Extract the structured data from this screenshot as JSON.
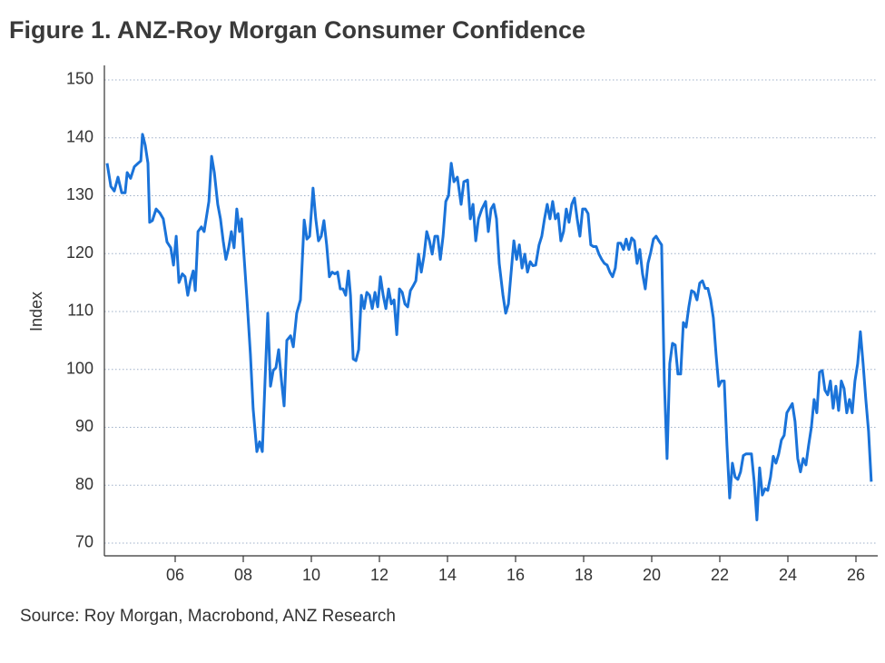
{
  "chart_data": {
    "type": "line",
    "title": "Figure 1.  ANZ-Roy Morgan Consumer Confidence",
    "y_label": "Index",
    "source": "Source: Roy Morgan, Macrobond, ANZ Research",
    "color": "#1a73d9",
    "grid": true,
    "xlim": [
      3.92,
      26.64
    ],
    "ylim": [
      67.8,
      152.5
    ],
    "yticks": [
      70,
      80,
      90,
      100,
      110,
      120,
      130,
      140,
      150
    ],
    "xticks": [
      {
        "value": 6,
        "label": "06"
      },
      {
        "value": 8,
        "label": "08"
      },
      {
        "value": 10,
        "label": "10"
      },
      {
        "value": 12,
        "label": "12"
      },
      {
        "value": 14,
        "label": "14"
      },
      {
        "value": 16,
        "label": "16"
      },
      {
        "value": 18,
        "label": "18"
      },
      {
        "value": 20,
        "label": "20"
      },
      {
        "value": 22,
        "label": "22"
      },
      {
        "value": 24,
        "label": "24"
      },
      {
        "value": 26,
        "label": "26"
      }
    ],
    "x": [
      4.0,
      4.11,
      4.21,
      4.32,
      4.43,
      4.53,
      4.59,
      4.69,
      4.8,
      4.91,
      4.99,
      5.04,
      5.12,
      5.2,
      5.25,
      5.33,
      5.44,
      5.55,
      5.65,
      5.76,
      5.87,
      5.95,
      6.03,
      6.11,
      6.21,
      6.29,
      6.37,
      6.45,
      6.53,
      6.59,
      6.67,
      6.77,
      6.85,
      6.99,
      7.07,
      7.15,
      7.25,
      7.33,
      7.41,
      7.49,
      7.57,
      7.65,
      7.73,
      7.81,
      7.89,
      7.95,
      8.0,
      8.11,
      8.21,
      8.29,
      8.4,
      8.48,
      8.56,
      8.64,
      8.72,
      8.8,
      8.88,
      8.96,
      9.04,
      9.12,
      9.2,
      9.28,
      9.39,
      9.47,
      9.57,
      9.68,
      9.79,
      9.87,
      9.95,
      10.05,
      10.13,
      10.21,
      10.29,
      10.37,
      10.45,
      10.53,
      10.61,
      10.69,
      10.77,
      10.85,
      10.93,
      11.01,
      11.09,
      11.15,
      11.23,
      11.31,
      11.39,
      11.47,
      11.55,
      11.63,
      11.71,
      11.79,
      11.87,
      11.95,
      12.03,
      12.11,
      12.19,
      12.27,
      12.35,
      12.43,
      12.51,
      12.59,
      12.67,
      12.75,
      12.83,
      12.91,
      12.99,
      13.07,
      13.15,
      13.23,
      13.31,
      13.39,
      13.47,
      13.55,
      13.63,
      13.71,
      13.79,
      13.87,
      13.95,
      14.03,
      14.11,
      14.19,
      14.29,
      14.4,
      14.48,
      14.59,
      14.67,
      14.75,
      14.83,
      14.91,
      15.01,
      15.12,
      15.2,
      15.28,
      15.36,
      15.44,
      15.52,
      15.63,
      15.71,
      15.79,
      15.87,
      15.95,
      16.03,
      16.11,
      16.19,
      16.27,
      16.35,
      16.43,
      16.51,
      16.59,
      16.69,
      16.77,
      16.85,
      16.93,
      17.01,
      17.09,
      17.17,
      17.25,
      17.33,
      17.41,
      17.49,
      17.57,
      17.65,
      17.73,
      17.81,
      17.89,
      17.97,
      18.05,
      18.13,
      18.21,
      18.29,
      18.37,
      18.45,
      18.53,
      18.61,
      18.69,
      18.77,
      18.85,
      18.93,
      19.01,
      19.09,
      19.17,
      19.25,
      19.33,
      19.41,
      19.49,
      19.57,
      19.65,
      19.73,
      19.81,
      19.89,
      19.97,
      20.05,
      20.13,
      20.21,
      20.29,
      20.37,
      20.45,
      20.53,
      20.61,
      20.69,
      20.77,
      20.85,
      20.93,
      21.01,
      21.09,
      21.17,
      21.25,
      21.33,
      21.41,
      21.49,
      21.57,
      21.65,
      21.73,
      21.81,
      21.89,
      21.97,
      22.05,
      22.13,
      22.21,
      22.29,
      22.37,
      22.45,
      22.53,
      22.61,
      22.69,
      22.77,
      22.85,
      22.93,
      23.01,
      23.09,
      23.17,
      23.25,
      23.33,
      23.41,
      23.49,
      23.57,
      23.65,
      23.73,
      23.81,
      23.89,
      23.97,
      24.05,
      24.13,
      24.21,
      24.29,
      24.37,
      24.45,
      24.53,
      24.61,
      24.69,
      24.77,
      24.85,
      24.93,
      25.01,
      25.09,
      25.17,
      25.25,
      25.33,
      25.41,
      25.49,
      25.57,
      25.65,
      25.73,
      25.81,
      25.89,
      25.97,
      26.05,
      26.13,
      26.21,
      26.29,
      26.37,
      26.45
    ],
    "values": [
      135.6,
      131.6,
      130.8,
      133.2,
      130.5,
      130.5,
      134,
      133,
      135,
      135.6,
      136,
      140.6,
      138.7,
      135.6,
      125.4,
      125.7,
      127.7,
      127,
      126,
      122,
      121,
      118,
      123,
      115,
      116.5,
      116,
      112.8,
      115.3,
      117,
      113.6,
      123.8,
      124.6,
      123.8,
      129,
      136.8,
      134,
      128.5,
      126,
      122.2,
      119,
      121,
      123.8,
      121,
      127.7,
      123.8,
      126,
      121.5,
      112,
      102.6,
      93.2,
      85.8,
      87.5,
      85.8,
      98,
      109.7,
      97.1,
      99.8,
      100.3,
      103.4,
      98.2,
      93.7,
      105,
      105.8,
      103.9,
      109.7,
      112,
      125.8,
      122.5,
      123,
      131.3,
      126,
      122.2,
      123,
      125.7,
      121.5,
      116,
      116.8,
      116.5,
      116.8,
      113.9,
      113.9,
      112.8,
      117,
      112.8,
      101.8,
      101.5,
      103.4,
      112.8,
      110.5,
      113.3,
      112.8,
      110.5,
      113.3,
      110.8,
      116,
      112.8,
      110.5,
      113.9,
      111.3,
      112,
      106,
      113.9,
      113.3,
      111.3,
      110.8,
      113.6,
      114.4,
      115.3,
      119.9,
      116.8,
      119.6,
      123.8,
      122.2,
      119.9,
      123,
      123,
      119,
      123,
      129,
      130,
      135.6,
      132.4,
      133.2,
      128.5,
      132.4,
      132.7,
      126,
      128.5,
      122.2,
      126,
      127.7,
      129,
      123.8,
      127.7,
      128.5,
      126,
      118.3,
      112.8,
      109.7,
      111.3,
      116.8,
      122.2,
      119,
      121.5,
      117.5,
      119.9,
      116.8,
      118.6,
      117.9,
      118,
      121.5,
      123,
      126,
      128.5,
      126,
      129,
      126,
      126.9,
      122.2,
      123.8,
      127.7,
      125.4,
      128.5,
      129.6,
      126,
      123,
      127.7,
      127.7,
      126.9,
      121.5,
      121.2,
      121.2,
      119.9,
      119,
      118.3,
      118,
      116.8,
      116,
      117.5,
      121.8,
      121.8,
      120.7,
      122.5,
      120.7,
      122.7,
      122.2,
      118.3,
      120.7,
      116.5,
      113.9,
      118.3,
      120.2,
      122.5,
      123,
      122.2,
      121.5,
      98,
      84.6,
      101,
      104.5,
      104.2,
      99.2,
      99.2,
      108.1,
      107.3,
      110.8,
      113.6,
      113.3,
      112,
      114.9,
      115.3,
      114,
      114,
      112,
      108.9,
      102.6,
      97.1,
      98,
      98,
      86.9,
      77.8,
      83.8,
      81.4,
      81,
      82.3,
      85.1,
      85.4,
      85.4,
      85.4,
      80.6,
      74,
      83,
      78.3,
      79.4,
      79.1,
      81.4,
      85,
      83.8,
      85.4,
      87.8,
      88.6,
      92.5,
      93.3,
      94.1,
      91,
      84.6,
      82.3,
      84.6,
      83.5,
      86.9,
      90,
      94.8,
      92.5,
      99.5,
      99.8,
      96.4,
      95.6,
      98,
      93.3,
      97.1,
      92.9,
      98,
      96.7,
      92.5,
      94.8,
      92.5,
      98,
      101,
      106.5,
      101,
      94.8,
      89.3,
      80.6
    ]
  }
}
